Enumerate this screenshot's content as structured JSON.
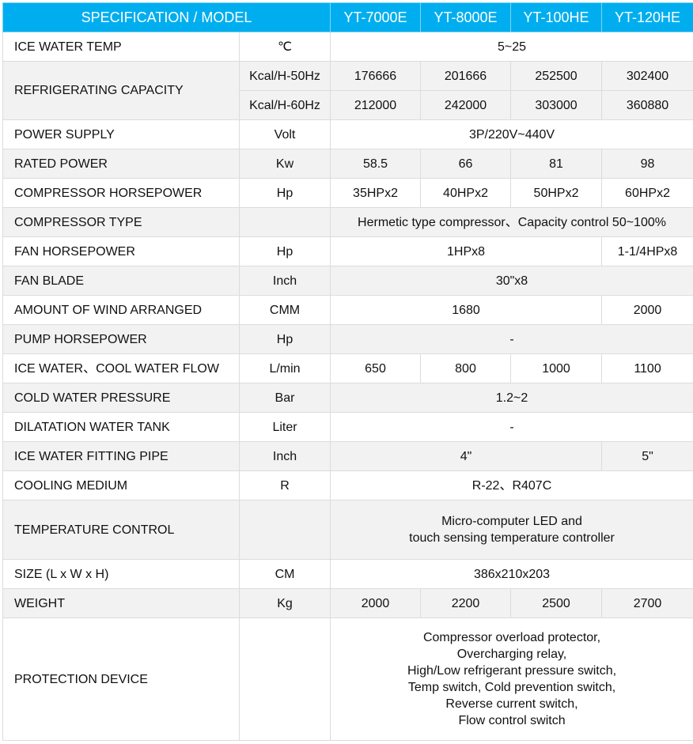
{
  "header": {
    "spec_label": "SPECIFICATION / MODEL",
    "models": [
      "YT-7000E",
      "YT-8000E",
      "YT-100HE",
      "YT-120HE"
    ],
    "color": "#00aeef"
  },
  "rows": [
    {
      "label": "ICE WATER TEMP",
      "unit": "℃",
      "cells": [
        {
          "text": "5~25",
          "span": 4
        }
      ]
    },
    {
      "label": "REFRIGERATING CAPACITY",
      "subrows": [
        {
          "unit": "Kcal/H-50Hz",
          "cells": [
            {
              "text": "176666"
            },
            {
              "text": "201666"
            },
            {
              "text": "252500"
            },
            {
              "text": "302400"
            }
          ]
        },
        {
          "unit": "Kcal/H-60Hz",
          "cells": [
            {
              "text": "212000"
            },
            {
              "text": "242000"
            },
            {
              "text": "303000"
            },
            {
              "text": "360880"
            }
          ]
        }
      ]
    },
    {
      "label": "POWER SUPPLY",
      "unit": "Volt",
      "cells": [
        {
          "text": "3P/220V~440V",
          "span": 4
        }
      ]
    },
    {
      "label": "RATED POWER",
      "unit": "Kw",
      "cells": [
        {
          "text": "58.5"
        },
        {
          "text": "66"
        },
        {
          "text": "81"
        },
        {
          "text": "98"
        }
      ]
    },
    {
      "label": "COMPRESSOR HORSEPOWER",
      "unit": "Hp",
      "cells": [
        {
          "text": "35HPx2"
        },
        {
          "text": "40HPx2"
        },
        {
          "text": "50HPx2"
        },
        {
          "text": "60HPx2"
        }
      ]
    },
    {
      "label": "COMPRESSOR TYPE",
      "unit": "",
      "cells": [
        {
          "text": "Hermetic type compressor、Capacity control 50~100%",
          "span": 4
        }
      ]
    },
    {
      "label": "FAN HORSEPOWER",
      "unit": "Hp",
      "cells": [
        {
          "text": "1HPx8",
          "span": 3
        },
        {
          "text": "1-1/4HPx8"
        }
      ]
    },
    {
      "label": "FAN BLADE",
      "unit": "Inch",
      "cells": [
        {
          "text": "30\"x8",
          "span": 4
        }
      ]
    },
    {
      "label": "AMOUNT OF WIND ARRANGED",
      "unit": "CMM",
      "cells": [
        {
          "text": "1680",
          "span": 3
        },
        {
          "text": "2000"
        }
      ]
    },
    {
      "label": "PUMP HORSEPOWER",
      "unit": "Hp",
      "cells": [
        {
          "text": "-",
          "span": 4
        }
      ]
    },
    {
      "label": "ICE WATER、COOL WATER FLOW",
      "unit": "L/min",
      "cells": [
        {
          "text": "650"
        },
        {
          "text": "800"
        },
        {
          "text": "1000"
        },
        {
          "text": "1100"
        }
      ]
    },
    {
      "label": "COLD WATER PRESSURE",
      "unit": "Bar",
      "cells": [
        {
          "text": "1.2~2",
          "span": 4
        }
      ]
    },
    {
      "label": "DILATATION WATER TANK",
      "unit": "Liter",
      "cells": [
        {
          "text": "-",
          "span": 4
        }
      ]
    },
    {
      "label": "ICE WATER FITTING PIPE",
      "unit": "Inch",
      "cells": [
        {
          "text": "4\"",
          "span": 3
        },
        {
          "text": "5\""
        }
      ]
    },
    {
      "label": "COOLING MEDIUM",
      "unit": "R",
      "cells": [
        {
          "text": "R-22、R407C",
          "span": 4
        }
      ]
    },
    {
      "label": "TEMPERATURE CONTROL",
      "unit": "",
      "cells": [
        {
          "lines": [
            "Micro-computer LED and",
            "touch sensing temperature controller"
          ],
          "span": 4
        }
      ]
    },
    {
      "label": "SIZE (L x W x H)",
      "unit": "CM",
      "cells": [
        {
          "text": "386x210x203",
          "span": 4
        }
      ]
    },
    {
      "label": "WEIGHT",
      "unit": "Kg",
      "cells": [
        {
          "text": "2000"
        },
        {
          "text": "2200"
        },
        {
          "text": "2500"
        },
        {
          "text": "2700"
        }
      ]
    },
    {
      "label": "PROTECTION DEVICE",
      "unit": "",
      "cells": [
        {
          "lines": [
            "Compressor overload protector,",
            "Overcharging relay,",
            "High/Low refrigerant pressure switch,",
            "Temp switch, Cold prevention switch,",
            "Reverse current switch,",
            "Flow control switch"
          ],
          "span": 4
        }
      ]
    }
  ]
}
